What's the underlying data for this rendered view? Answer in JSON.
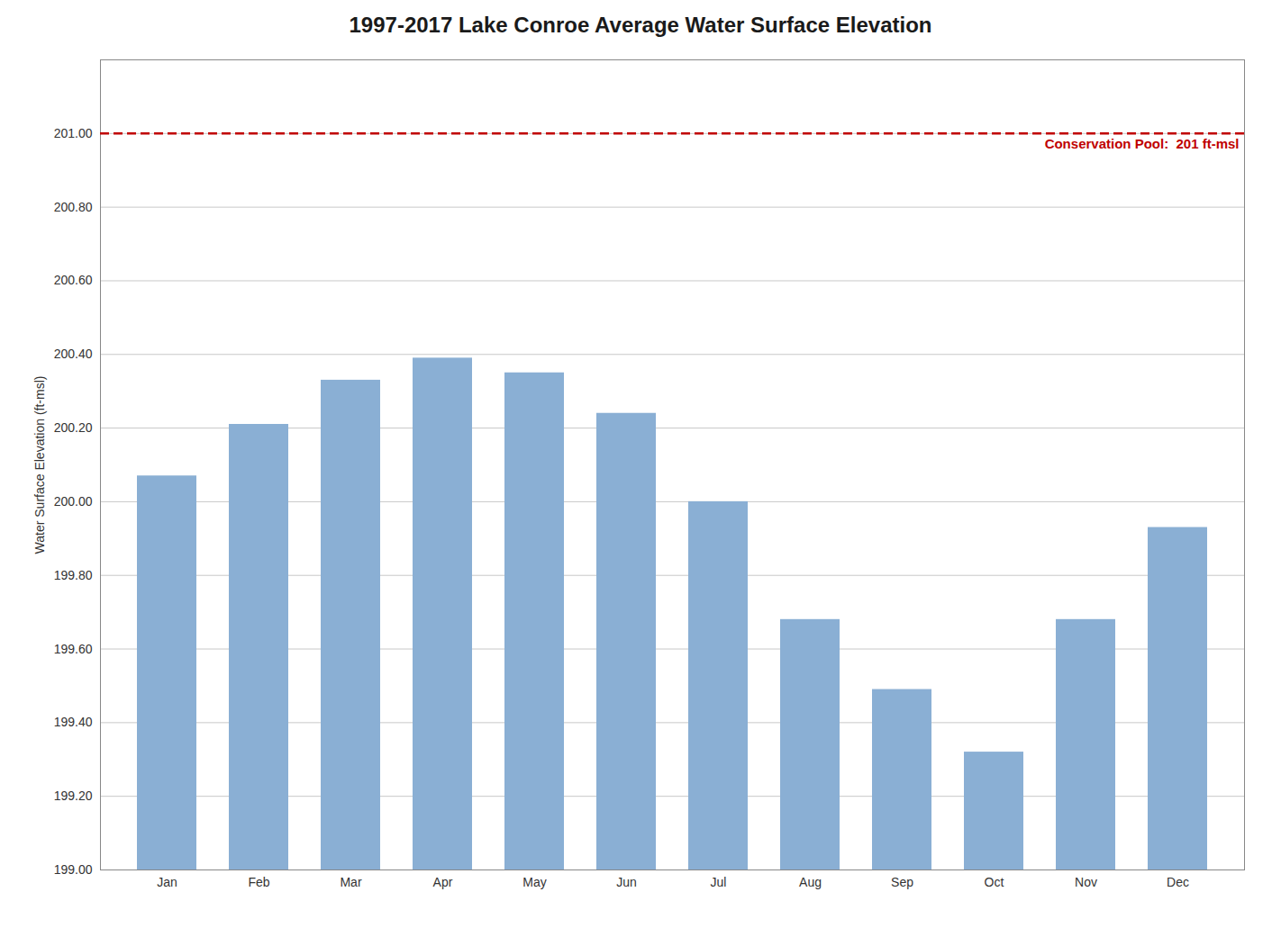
{
  "chart_data": {
    "type": "bar",
    "title": "1997-2017 Lake Conroe Average Water Surface Elevation",
    "ylabel": "Water Surface Elevation (ft-msl)",
    "categories": [
      "Jan",
      "Feb",
      "Mar",
      "Apr",
      "May",
      "Jun",
      "Jul",
      "Aug",
      "Sep",
      "Oct",
      "Nov",
      "Dec"
    ],
    "values": [
      200.07,
      200.21,
      200.33,
      200.39,
      200.35,
      200.24,
      200.0,
      199.68,
      199.49,
      199.32,
      199.68,
      199.93
    ],
    "color": "#8aafd4",
    "ylim": [
      199.0,
      201.2
    ],
    "yticks": [
      {
        "value": 199.0,
        "label": "199.00"
      },
      {
        "value": 199.2,
        "label": "199.20"
      },
      {
        "value": 199.4,
        "label": "199.40"
      },
      {
        "value": 199.6,
        "label": "199.60"
      },
      {
        "value": 199.8,
        "label": "199.80"
      },
      {
        "value": 200.0,
        "label": "200.00"
      },
      {
        "value": 200.2,
        "label": "200.20"
      },
      {
        "value": 200.4,
        "label": "200.40"
      },
      {
        "value": 200.6,
        "label": "200.60"
      },
      {
        "value": 200.8,
        "label": "200.80"
      },
      {
        "value": 201.0,
        "label": "201.00"
      }
    ],
    "grid": true,
    "annotations": [
      {
        "type": "hline",
        "y": 201.0,
        "text": "Conservation Pool:  201 ft-msl",
        "color": "#c00000",
        "line_style": "dashed"
      }
    ]
  }
}
